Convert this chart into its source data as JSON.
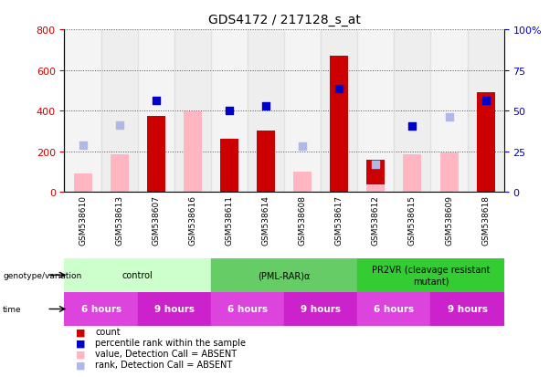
{
  "title": "GDS4172 / 217128_s_at",
  "samples": [
    "GSM538610",
    "GSM538613",
    "GSM538607",
    "GSM538616",
    "GSM538611",
    "GSM538614",
    "GSM538608",
    "GSM538617",
    "GSM538612",
    "GSM538615",
    "GSM538609",
    "GSM538618"
  ],
  "count_present": [
    null,
    null,
    375,
    null,
    262,
    300,
    null,
    670,
    160,
    null,
    null,
    490
  ],
  "count_absent": [
    90,
    185,
    null,
    null,
    null,
    null,
    100,
    null,
    null,
    null,
    null,
    null
  ],
  "value_absent": [
    null,
    null,
    null,
    395,
    null,
    null,
    null,
    null,
    35,
    185,
    195,
    null
  ],
  "rank_absent_pct": [
    28.7,
    41.2,
    null,
    null,
    null,
    null,
    28.1,
    null,
    16.9,
    null,
    46.3,
    null
  ],
  "percentile_present_pct": [
    null,
    null,
    56.3,
    null,
    50.0,
    53.1,
    null,
    63.8,
    null,
    40.6,
    null,
    56.3
  ],
  "ylim_left": [
    0,
    800
  ],
  "ylim_right": [
    0,
    100
  ],
  "yticks_left": [
    0,
    200,
    400,
    600,
    800
  ],
  "yticks_right": [
    0,
    25,
    50,
    75,
    100
  ],
  "ytick_labels_right": [
    "0",
    "25",
    "50",
    "75",
    "100%"
  ],
  "bar_color_present": "#cc0000",
  "bar_color_absent": "#ffb6c1",
  "dot_color_present": "#0000cc",
  "dot_color_absent": "#b0b8e8",
  "left_label_color": "#cc0000",
  "right_label_color": "#0000cc",
  "genotype_groups": [
    {
      "label": "control",
      "start": 0,
      "end": 4,
      "color": "#ccffcc"
    },
    {
      "label": "(PML-RAR)α",
      "start": 4,
      "end": 8,
      "color": "#66cc66"
    },
    {
      "label": "PR2VR (cleavage resistant\nmutant)",
      "start": 8,
      "end": 12,
      "color": "#33cc33"
    }
  ],
  "time_groups": [
    {
      "label": "6 hours",
      "start": 0,
      "end": 2,
      "color": "#dd44dd"
    },
    {
      "label": "9 hours",
      "start": 2,
      "end": 4,
      "color": "#cc22cc"
    },
    {
      "label": "6 hours",
      "start": 4,
      "end": 6,
      "color": "#dd44dd"
    },
    {
      "label": "9 hours",
      "start": 6,
      "end": 8,
      "color": "#cc22cc"
    },
    {
      "label": "6 hours",
      "start": 8,
      "end": 10,
      "color": "#dd44dd"
    },
    {
      "label": "9 hours",
      "start": 10,
      "end": 12,
      "color": "#cc22cc"
    }
  ],
  "legend_items": [
    {
      "label": "count",
      "color": "#cc0000"
    },
    {
      "label": "percentile rank within the sample",
      "color": "#0000cc"
    },
    {
      "label": "value, Detection Call = ABSENT",
      "color": "#ffb6c1"
    },
    {
      "label": "rank, Detection Call = ABSENT",
      "color": "#b0b8e8"
    }
  ]
}
